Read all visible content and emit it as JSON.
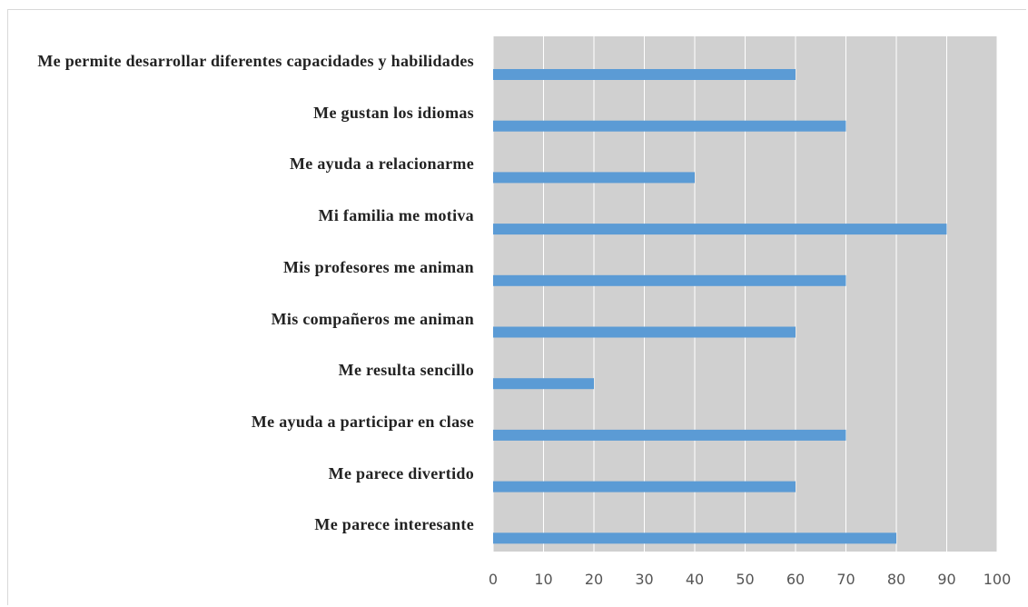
{
  "chart_data": {
    "type": "barh",
    "categories": [
      "Me permite desarrollar diferentes capacidades y habilidades",
      "Me gustan los idiomas",
      "Me ayuda a relacionarme",
      "Mi familia me motiva",
      "Mis profesores me animan",
      "Mis compañeros me animan",
      "Me resulta sencillo",
      "Me ayuda a participar en clase",
      "Me parece divertido",
      "Me parece interesante"
    ],
    "values": [
      60,
      70,
      40,
      90,
      70,
      60,
      20,
      70,
      60,
      80
    ],
    "color": "#5b9bd5",
    "xlim": [
      0,
      100
    ],
    "xticks": [
      0,
      10,
      20,
      30,
      40,
      50,
      60,
      70,
      80,
      90,
      100
    ],
    "grid": true
  }
}
